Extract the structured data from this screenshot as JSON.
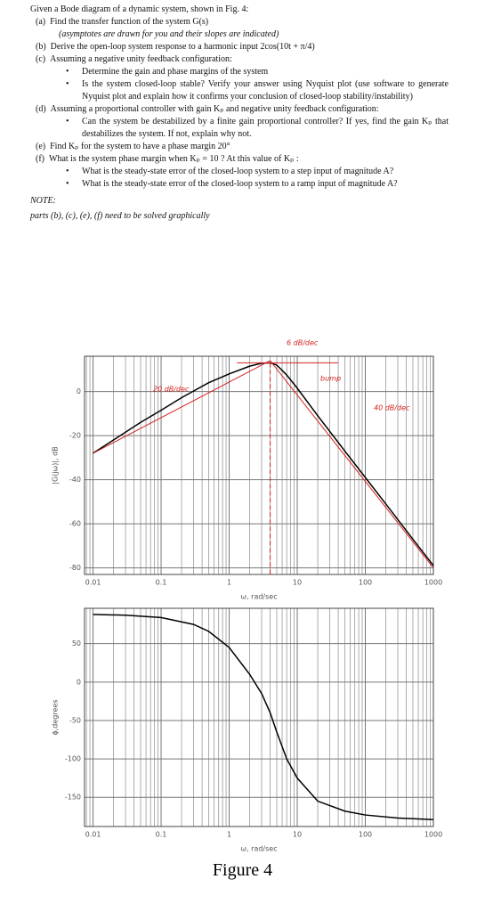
{
  "document": {
    "title": "Given a Bode diagram of a dynamic system, shown in Fig. 4:",
    "items": [
      {
        "label": "(a)",
        "text": "Find the transfer function of the system G(s)",
        "note": "(asymptotes are drawn for you and their slopes are indicated)"
      },
      {
        "label": "(b)",
        "text": "Derive the open-loop system response to a harmonic input 2cos(10t + π/4)"
      },
      {
        "label": "(c)",
        "text": "Assuming a negative unity feedback configuration:",
        "bullets": [
          "Determine the gain and phase margins of the system",
          "Is the system closed-loop stable? Verify your answer using Nyquist plot (use software to generate Nyquist plot and explain how it confirms your conclusion of closed-loop stability/instability)"
        ]
      },
      {
        "label": "(d)",
        "text": "Assuming a proportional controller with gain Kₚ and negative unity feedback configuration:",
        "bullets": [
          "Can the system be destabilized by a finite gain proportional controller? If yes, find the gain Kₚ that destabilizes the system. If not, explain why not."
        ]
      },
      {
        "label": "(e)",
        "text": "Find Kₚ for the system to have a phase margin 20°"
      },
      {
        "label": "(f)",
        "text": "What is the system phase margin when Kₚ = 10 ? At this value of Kₚ :",
        "bullets": [
          "What is the steady-state error of the closed-loop system to a step input of magnitude A?",
          "What is the steady-state error of the closed-loop system to a ramp input of magnitude A?"
        ]
      }
    ],
    "note_label": "NOTE:",
    "note_text": "parts (b), (c), (e), (f) need to be solved graphically",
    "figure_caption": "Figure 4"
  },
  "chart_data": [
    {
      "type": "line",
      "xlabel": "ω, rad/sec",
      "ylabel": "|G(jω)|, dB",
      "log_x": true,
      "grid": true,
      "minor_grid": true,
      "xlim": [
        0.0075,
        1000
      ],
      "xticks": [
        0.01,
        0.1,
        1,
        10,
        100,
        1000
      ],
      "ylim": [
        -83,
        16
      ],
      "yticks": [
        -80,
        -60,
        -40,
        -20,
        0
      ],
      "annotations": [
        "6 dB/dec",
        "bump",
        "20 dB/dec",
        "40 dB/dec"
      ],
      "annotation_color": "#d62020",
      "series": [
        {
          "color": "#000000",
          "x": [
            0.01,
            0.02,
            0.05,
            0.1,
            0.2,
            0.5,
            1,
            2,
            3,
            4,
            5,
            7,
            10,
            20,
            50,
            100,
            200,
            500,
            1000
          ],
          "values": [
            -28,
            -22,
            -14,
            -8.5,
            -2.8,
            4,
            8,
            11.5,
            12.8,
            13,
            12,
            7.5,
            1.5,
            -11,
            -27,
            -39,
            -51,
            -67,
            -79
          ]
        },
        {
          "color": "#d62020",
          "x": [
            0.01,
            4,
            1000
          ],
          "values": [
            -28,
            14,
            -80
          ]
        },
        {
          "color": "#d62020",
          "x": [
            1.3,
            40
          ],
          "values": [
            13,
            13
          ]
        },
        {
          "color": "#d62020",
          "dashed": true,
          "x": [
            4,
            4
          ],
          "values": [
            13,
            -83
          ]
        }
      ]
    },
    {
      "type": "line",
      "xlabel": "ω, rad/sec",
      "ylabel": "ϕ,degrees",
      "log_x": true,
      "grid": true,
      "minor_grid": true,
      "xlim": [
        0.0075,
        1000
      ],
      "xticks": [
        0.01,
        0.1,
        1,
        10,
        100,
        1000
      ],
      "ylim": [
        -188,
        96
      ],
      "yticks": [
        -150,
        -100,
        -50,
        0,
        50
      ],
      "series": [
        {
          "color": "#000000",
          "x": [
            0.01,
            0.03,
            0.1,
            0.3,
            0.5,
            1,
            2,
            3,
            4,
            5,
            7,
            10,
            20,
            50,
            100,
            300,
            1000
          ],
          "values": [
            88,
            87,
            84,
            75,
            66,
            45,
            10,
            -15,
            -40,
            -65,
            -100,
            -125,
            -155,
            -168,
            -173,
            -177,
            -179
          ]
        }
      ]
    }
  ]
}
